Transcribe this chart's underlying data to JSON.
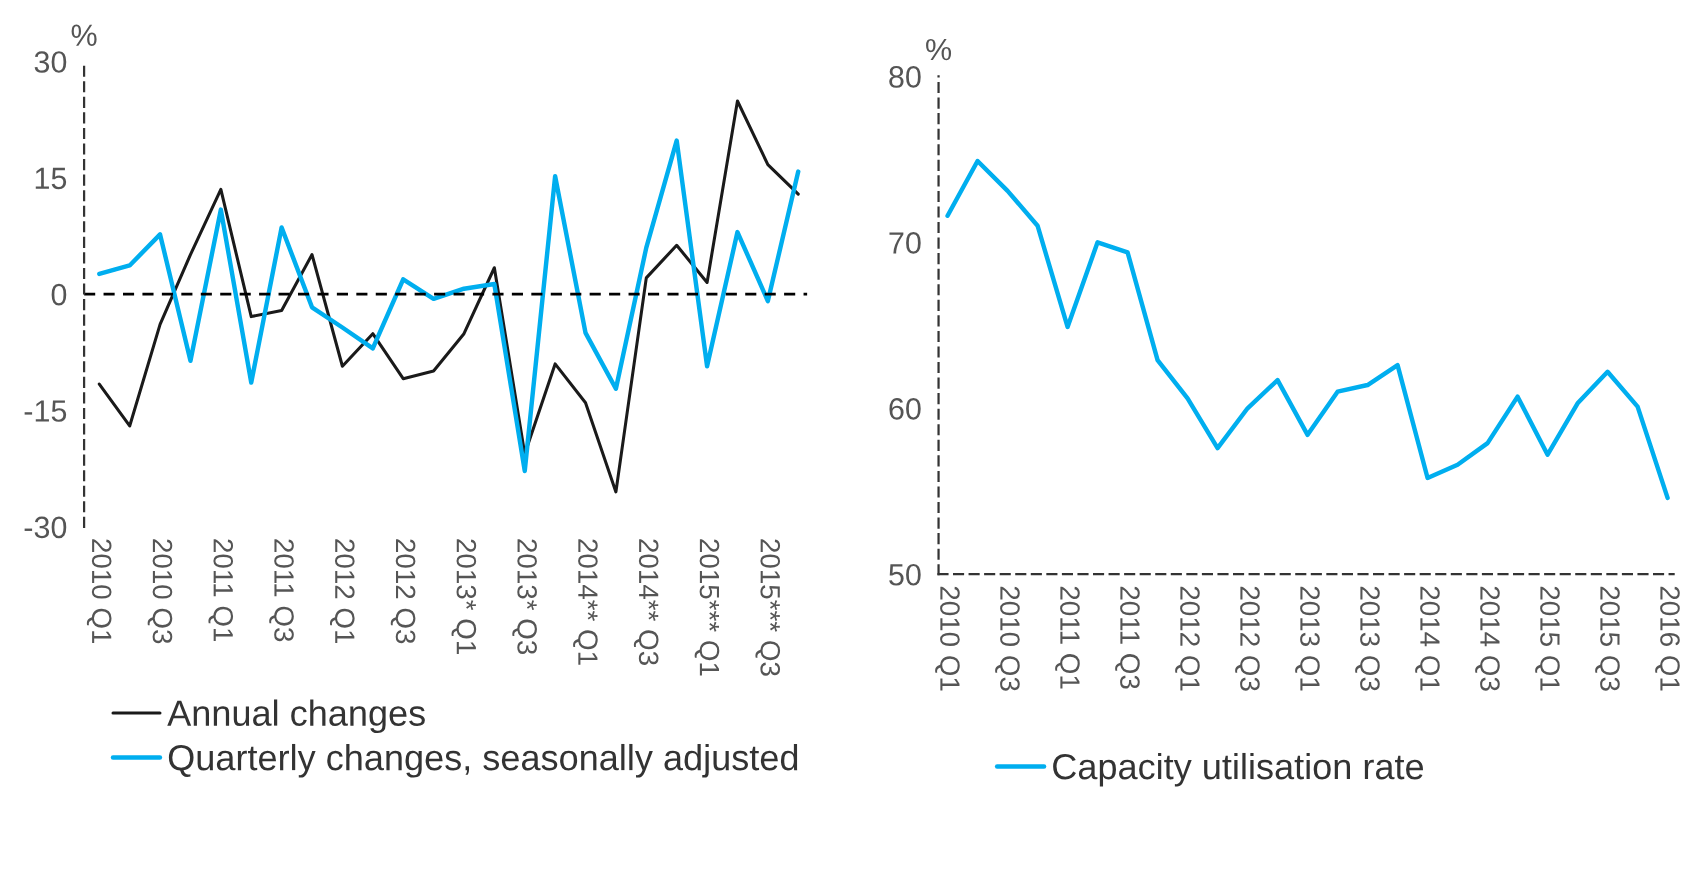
{
  "chart_data": [
    {
      "type": "line",
      "ylabel": "%",
      "categories": [
        "2010 Q1",
        null,
        "2010 Q3",
        null,
        "2011 Q1",
        null,
        "2011 Q3",
        null,
        "2012 Q1",
        null,
        "2012 Q3",
        null,
        "2013* Q1",
        null,
        "2013* Q3",
        null,
        "2014** Q1",
        null,
        "2014** Q3",
        null,
        "2015*** Q1",
        null,
        "2015*** Q3",
        null
      ],
      "series": [
        {
          "name": "Annual changes",
          "color": "#1a1a1a",
          "values": [
            -11.6,
            -17,
            -3.9,
            5.1,
            13.5,
            -2.9,
            -2.1,
            5.1,
            -9.3,
            -5.1,
            -10.9,
            -9.9,
            -5.1,
            3.4,
            -20.6,
            -9,
            -14,
            -25.5,
            2.1,
            6.3,
            1.5,
            24.9,
            16.7,
            12.9
          ]
        },
        {
          "name": "Quarterly changes, seasonally adjusted",
          "color": "#00aeef",
          "values": [
            2.6,
            3.7,
            7.7,
            -8.6,
            10.9,
            -11.4,
            8.6,
            -1.7,
            -4.3,
            -7,
            1.9,
            -0.6,
            0.7,
            1.3,
            -22.8,
            15.2,
            -5,
            -12.2,
            6,
            19.8,
            -9.3,
            8,
            -0.9,
            15.8
          ]
        }
      ],
      "ylim": [
        -30,
        30
      ],
      "yticks": [
        -30,
        -15,
        0,
        15,
        30
      ],
      "ref_lines": [
        {
          "axis": "y",
          "value": 0,
          "color": "#000000",
          "line_style": "dashed"
        }
      ],
      "legend": "bottom",
      "grid": false,
      "marker": "none",
      "line_style": "solid"
    },
    {
      "type": "line",
      "ylabel": "%",
      "categories": [
        "2010 Q1",
        null,
        "2010 Q3",
        null,
        "2011 Q1",
        null,
        "2011 Q3",
        null,
        "2012 Q1",
        null,
        "2012 Q3",
        null,
        "2013 Q1",
        null,
        "2013 Q3",
        null,
        "2014 Q1",
        null,
        "2014 Q3",
        null,
        "2015 Q1",
        null,
        "2015 Q3",
        null,
        "2016 Q1"
      ],
      "series": [
        {
          "name": "Capacity utilisation rate",
          "color": "#00aeef",
          "values": [
            71.6,
            74.9,
            73.1,
            71.0,
            64.9,
            70.0,
            69.4,
            62.9,
            60.6,
            57.6,
            60.0,
            61.7,
            58.4,
            61.0,
            61.4,
            62.6,
            55.8,
            56.6,
            57.9,
            60.7,
            57.2,
            60.3,
            62.2,
            60.1,
            54.6
          ]
        }
      ],
      "ylim": [
        50,
        80
      ],
      "yticks": [
        50,
        60,
        70,
        80
      ],
      "legend": "bottom",
      "grid": false,
      "marker": "none",
      "line_style": "solid"
    }
  ]
}
